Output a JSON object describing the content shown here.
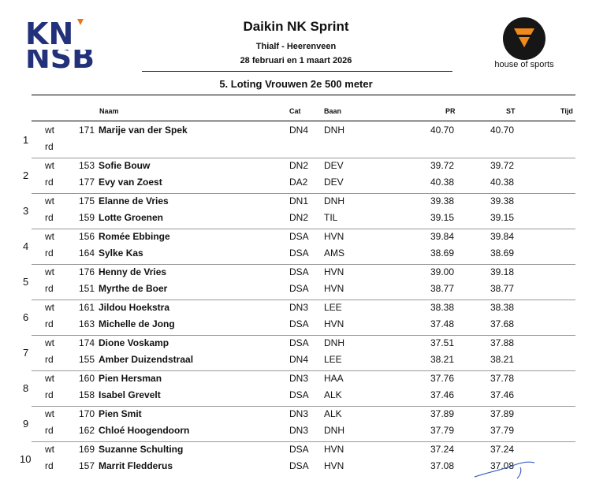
{
  "logo_left": {
    "text": "KNSB"
  },
  "logo_right": {
    "text": "house of sports"
  },
  "header": {
    "title": "Daikin NK Sprint",
    "venue": "Thialf - Heerenveen",
    "dates": "28 februari en 1 maart 2026",
    "subtitle": "5. Loting Vrouwen 2e 500 meter"
  },
  "columns": {
    "naam": "Naam",
    "cat": "Cat",
    "baan": "Baan",
    "pr": "PR",
    "st": "ST",
    "tijd": "Tijd"
  },
  "pairs": [
    {
      "no": "1",
      "rows": [
        {
          "lane": "wt",
          "start": "171",
          "name": "Marije van der Spek",
          "cat": "DN4",
          "club": "DNH",
          "pr": "40.70",
          "st": "40.70"
        },
        {
          "lane": "rd",
          "start": "",
          "name": "",
          "cat": "",
          "club": "",
          "pr": "",
          "st": ""
        }
      ]
    },
    {
      "no": "2",
      "rows": [
        {
          "lane": "wt",
          "start": "153",
          "name": "Sofie Bouw",
          "cat": "DN2",
          "club": "DEV",
          "pr": "39.72",
          "st": "39.72"
        },
        {
          "lane": "rd",
          "start": "177",
          "name": "Evy van Zoest",
          "cat": "DA2",
          "club": "DEV",
          "pr": "40.38",
          "st": "40.38"
        }
      ]
    },
    {
      "no": "3",
      "rows": [
        {
          "lane": "wt",
          "start": "175",
          "name": "Elanne de Vries",
          "cat": "DN1",
          "club": "DNH",
          "pr": "39.38",
          "st": "39.38"
        },
        {
          "lane": "rd",
          "start": "159",
          "name": "Lotte Groenen",
          "cat": "DN2",
          "club": "TIL",
          "pr": "39.15",
          "st": "39.15"
        }
      ]
    },
    {
      "no": "4",
      "rows": [
        {
          "lane": "wt",
          "start": "156",
          "name": "Romée Ebbinge",
          "cat": "DSA",
          "club": "HVN",
          "pr": "39.84",
          "st": "39.84"
        },
        {
          "lane": "rd",
          "start": "164",
          "name": "Sylke Kas",
          "cat": "DSA",
          "club": "AMS",
          "pr": "38.69",
          "st": "38.69"
        }
      ]
    },
    {
      "no": "5",
      "rows": [
        {
          "lane": "wt",
          "start": "176",
          "name": "Henny de Vries",
          "cat": "DSA",
          "club": "HVN",
          "pr": "39.00",
          "st": "39.18"
        },
        {
          "lane": "rd",
          "start": "151",
          "name": "Myrthe de Boer",
          "cat": "DSA",
          "club": "HVN",
          "pr": "38.77",
          "st": "38.77"
        }
      ]
    },
    {
      "no": "6",
      "rows": [
        {
          "lane": "wt",
          "start": "161",
          "name": "Jildou Hoekstra",
          "cat": "DN3",
          "club": "LEE",
          "pr": "38.38",
          "st": "38.38"
        },
        {
          "lane": "rd",
          "start": "163",
          "name": "Michelle de Jong",
          "cat": "DSA",
          "club": "HVN",
          "pr": "37.48",
          "st": "37.68"
        }
      ]
    },
    {
      "no": "7",
      "rows": [
        {
          "lane": "wt",
          "start": "174",
          "name": "Dione Voskamp",
          "cat": "DSA",
          "club": "DNH",
          "pr": "37.51",
          "st": "37.88"
        },
        {
          "lane": "rd",
          "start": "155",
          "name": "Amber Duizendstraal",
          "cat": "DN4",
          "club": "LEE",
          "pr": "38.21",
          "st": "38.21"
        }
      ]
    },
    {
      "no": "8",
      "rows": [
        {
          "lane": "wt",
          "start": "160",
          "name": "Pien Hersman",
          "cat": "DN3",
          "club": "HAA",
          "pr": "37.76",
          "st": "37.78"
        },
        {
          "lane": "rd",
          "start": "158",
          "name": "Isabel Grevelt",
          "cat": "DSA",
          "club": "ALK",
          "pr": "37.46",
          "st": "37.46"
        }
      ]
    },
    {
      "no": "9",
      "rows": [
        {
          "lane": "wt",
          "start": "170",
          "name": "Pien Smit",
          "cat": "DN3",
          "club": "ALK",
          "pr": "37.89",
          "st": "37.89"
        },
        {
          "lane": "rd",
          "start": "162",
          "name": "Chloé Hoogendoorn",
          "cat": "DN3",
          "club": "DNH",
          "pr": "37.79",
          "st": "37.79"
        }
      ]
    },
    {
      "no": "10",
      "rows": [
        {
          "lane": "wt",
          "start": "169",
          "name": "Suzanne Schulting",
          "cat": "DSA",
          "club": "HVN",
          "pr": "37.24",
          "st": "37.24"
        },
        {
          "lane": "rd",
          "start": "157",
          "name": "Marrit Fledderus",
          "cat": "DSA",
          "club": "HVN",
          "pr": "37.08",
          "st": "37.08"
        }
      ]
    }
  ]
}
